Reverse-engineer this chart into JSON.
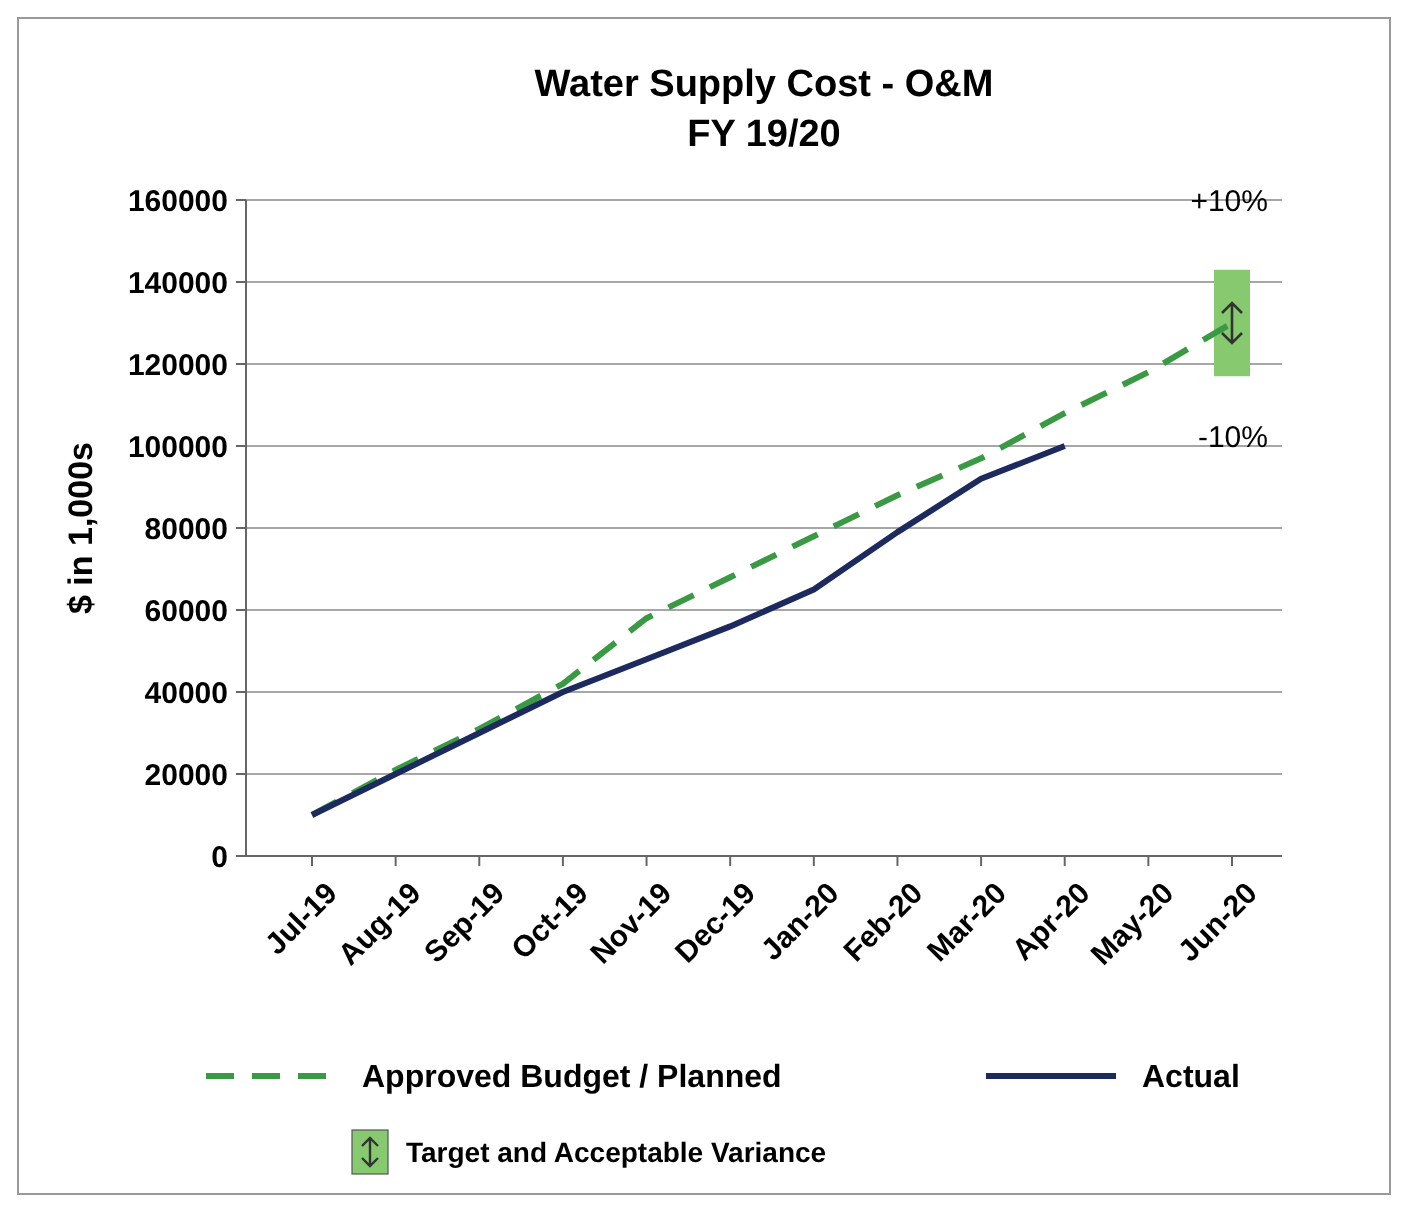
{
  "chart_data": {
    "type": "line",
    "title": "Water Supply Cost - O&M",
    "subtitle": "FY 19/20",
    "ylabel": "$ in 1,000s",
    "categories": [
      "Jul-19",
      "Aug-19",
      "Sep-19",
      "Oct-19",
      "Nov-19",
      "Dec-19",
      "Jan-20",
      "Feb-20",
      "Mar-20",
      "Apr-20",
      "May-20",
      "Jun-20"
    ],
    "series": [
      {
        "name": "Approved Budget / Planned",
        "color": "#3a9a44",
        "line_style": "dashed",
        "values": [
          10000,
          21000,
          31000,
          42000,
          58000,
          68000,
          78000,
          88000,
          97000,
          108000,
          118000,
          130000
        ],
        "errors": [
          null,
          null,
          null,
          null,
          null,
          null,
          null,
          null,
          null,
          null,
          null,
          [
            117000,
            143000
          ]
        ]
      },
      {
        "name": "Actual",
        "color": "#1c2a5e",
        "line_style": "solid",
        "values": [
          10000,
          20000,
          30000,
          40000,
          48000,
          56000,
          65000,
          79000,
          92000,
          100000,
          null,
          null
        ]
      }
    ],
    "ylim": [
      0,
      160000
    ],
    "yticks": [
      0,
      20000,
      40000,
      60000,
      80000,
      100000,
      120000,
      140000,
      160000
    ],
    "grid": "y",
    "legend": "bottom",
    "marker": "none",
    "annotations": [
      "+10%",
      "-10%",
      "Target and Acceptable Variance"
    ]
  }
}
